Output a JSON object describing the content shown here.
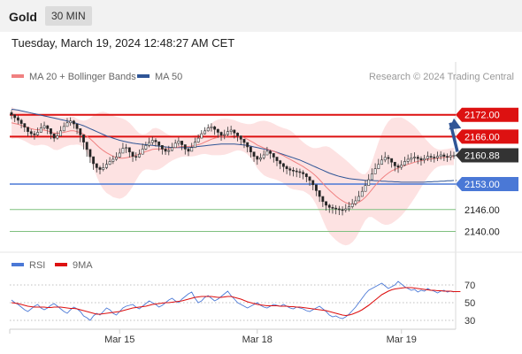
{
  "header": {
    "title": "Gold",
    "timeframe": "30 MIN",
    "timestamp": "Tuesday, March 19, 2024 12:48:27 AM CET"
  },
  "legend": {
    "ma20_label": "MA 20 + Bollinger Bands",
    "ma50_label": "MA 50",
    "ma20_color": "#f08080",
    "ma50_color": "#2f5596",
    "credit": "Research © 2024 Trading Central"
  },
  "rsi_legend": {
    "rsi_label": "RSI",
    "ma9_label": "9MA",
    "rsi_color": "#4a78d6",
    "ma9_color": "#dd1111"
  },
  "colors": {
    "up_candle": "#ffffff",
    "down_candle": "#222222",
    "resistance": "#dd1111",
    "support": "#4a78d6",
    "target": "#7fc07f",
    "current": "#333333",
    "arrow": "#2f5596",
    "band_fill": "#fde2e2"
  },
  "chart_data": [
    {
      "type": "candlestick",
      "title": "Gold",
      "timeframe": "30 MIN",
      "ylim": [
        2136,
        2178
      ],
      "x_tick_labels": [
        "Mar 15",
        "Mar 18",
        "Mar 19"
      ],
      "current_price": {
        "label": "2160.88",
        "value": 2160.88
      },
      "levels": [
        {
          "label": "2172.00",
          "value": 2172.0,
          "kind": "resistance"
        },
        {
          "label": "2166.00",
          "value": 2166.0,
          "kind": "resistance"
        },
        {
          "label": "2153.00",
          "value": 2153.0,
          "kind": "support"
        },
        {
          "label": "2146.00",
          "value": 2146.0,
          "kind": "target"
        },
        {
          "label": "2140.00",
          "value": 2140.0,
          "kind": "target"
        }
      ],
      "close": [
        2172.0,
        2171.2,
        2170.5,
        2169.6,
        2168.6,
        2167.4,
        2166.8,
        2166.5,
        2167.2,
        2168.4,
        2169.0,
        2168.2,
        2166.8,
        2165.6,
        2166.2,
        2167.6,
        2168.8,
        2169.8,
        2170.3,
        2169.5,
        2168.2,
        2166.5,
        2164.5,
        2162.5,
        2160.5,
        2158.6,
        2157.5,
        2157.0,
        2157.5,
        2158.4,
        2159.2,
        2159.8,
        2160.4,
        2161.5,
        2162.8,
        2163.0,
        2161.8,
        2160.6,
        2160.4,
        2161.2,
        2162.6,
        2163.6,
        2164.4,
        2165.0,
        2164.6,
        2163.6,
        2162.6,
        2162.0,
        2162.2,
        2163.0,
        2164.2,
        2164.8,
        2163.8,
        2162.6,
        2162.0,
        2163.0,
        2164.5,
        2165.6,
        2166.8,
        2167.6,
        2168.4,
        2168.7,
        2168.0,
        2167.2,
        2166.4,
        2166.6,
        2167.4,
        2167.8,
        2167.0,
        2166.2,
        2165.3,
        2164.4,
        2163.2,
        2161.8,
        2160.6,
        2159.8,
        2160.2,
        2161.0,
        2162.0,
        2161.4,
        2160.4,
        2159.4,
        2158.6,
        2157.8,
        2157.2,
        2156.8,
        2156.6,
        2156.4,
        2156.2,
        2155.8,
        2155.0,
        2154.0,
        2152.8,
        2151.2,
        2149.6,
        2148.2,
        2147.2,
        2146.6,
        2146.4,
        2146.2,
        2146.0,
        2145.9,
        2146.2,
        2146.8,
        2147.6,
        2148.4,
        2149.6,
        2151.0,
        2152.6,
        2154.2,
        2155.8,
        2157.2,
        2158.4,
        2159.6,
        2160.3,
        2160.0,
        2159.0,
        2158.0,
        2157.6,
        2158.2,
        2159.2,
        2159.8,
        2160.2,
        2160.4,
        2160.0,
        2159.6,
        2160.0,
        2160.6,
        2160.4,
        2160.2,
        2160.6,
        2161.0,
        2160.6,
        2160.4,
        2160.8,
        2160.9
      ],
      "high": [
        2173.3,
        2172.2,
        2171.8,
        2170.9,
        2169.7,
        2168.5,
        2168.1,
        2167.6,
        2168.5,
        2169.7,
        2170.1,
        2169.2,
        2167.8,
        2166.7,
        2167.5,
        2168.9,
        2169.9,
        2171.1,
        2171.3,
        2170.6,
        2169.2,
        2167.5,
        2166.0,
        2164.0,
        2162.0,
        2159.9,
        2158.5,
        2158.0,
        2158.8,
        2159.7,
        2160.4,
        2160.8,
        2161.7,
        2162.8,
        2164.3,
        2164.0,
        2162.8,
        2161.6,
        2161.7,
        2162.5,
        2164.1,
        2164.6,
        2165.7,
        2166.0,
        2165.6,
        2164.6,
        2163.6,
        2163.3,
        2163.5,
        2164.3,
        2165.2,
        2165.8,
        2164.8,
        2163.6,
        2163.0,
        2164.3,
        2165.7,
        2166.6,
        2167.8,
        2168.6,
        2169.4,
        2169.7,
        2169.0,
        2168.2,
        2167.4,
        2167.9,
        2168.7,
        2169.0,
        2168.0,
        2167.2,
        2166.3,
        2165.4,
        2164.2,
        2162.8,
        2161.6,
        2160.8,
        2161.4,
        2162.3,
        2163.2,
        2162.4,
        2161.4,
        2160.4,
        2159.6,
        2158.8,
        2158.2,
        2157.8,
        2157.6,
        2157.4,
        2157.2,
        2156.8,
        2156.0,
        2155.0,
        2153.8,
        2152.2,
        2150.6,
        2149.2,
        2148.2,
        2147.6,
        2147.4,
        2147.2,
        2147.0,
        2146.9,
        2147.5,
        2148.1,
        2148.9,
        2149.7,
        2151.1,
        2152.3,
        2154.1,
        2155.7,
        2157.3,
        2158.7,
        2159.9,
        2160.9,
        2161.8,
        2161.0,
        2160.0,
        2159.0,
        2158.6,
        2159.5,
        2160.5,
        2161.1,
        2161.5,
        2161.7,
        2161.0,
        2160.6,
        2161.0,
        2161.9,
        2161.4,
        2161.2,
        2161.9,
        2162.0,
        2161.6,
        2161.4,
        2162.1,
        2161.9
      ],
      "low": [
        2170.8,
        2170.0,
        2169.4,
        2168.3,
        2167.3,
        2166.1,
        2165.8,
        2165.2,
        2166.2,
        2167.1,
        2168.0,
        2166.7,
        2165.3,
        2164.6,
        2165.2,
        2166.3,
        2167.5,
        2168.8,
        2169.0,
        2168.2,
        2166.7,
        2164.5,
        2162.5,
        2160.5,
        2158.8,
        2156.9,
        2156.2,
        2155.7,
        2156.5,
        2157.1,
        2158.2,
        2158.5,
        2159.4,
        2160.2,
        2161.5,
        2161.5,
        2160.3,
        2159.1,
        2159.4,
        2160.2,
        2161.3,
        2162.3,
        2163.1,
        2163.7,
        2163.3,
        2162.1,
        2161.1,
        2161.0,
        2160.9,
        2162.0,
        2163.2,
        2163.5,
        2162.3,
        2161.1,
        2160.7,
        2162.0,
        2163.2,
        2164.3,
        2165.8,
        2166.6,
        2167.4,
        2167.4,
        2166.5,
        2165.7,
        2164.9,
        2165.3,
        2166.1,
        2166.5,
        2165.5,
        2164.7,
        2163.8,
        2162.9,
        2161.7,
        2160.3,
        2159.1,
        2158.3,
        2159.2,
        2159.7,
        2161.0,
        2159.9,
        2158.9,
        2157.9,
        2157.1,
        2156.3,
        2155.7,
        2155.3,
        2155.1,
        2154.9,
        2154.7,
        2154.3,
        2153.5,
        2152.5,
        2151.3,
        2149.7,
        2148.1,
        2146.7,
        2145.7,
        2145.1,
        2144.9,
        2144.7,
        2144.5,
        2144.4,
        2145.2,
        2145.5,
        2146.3,
        2147.1,
        2148.3,
        2149.7,
        2151.3,
        2152.9,
        2154.5,
        2155.9,
        2157.1,
        2158.3,
        2159.0,
        2158.5,
        2157.5,
        2156.5,
        2156.1,
        2156.9,
        2157.9,
        2158.5,
        2158.9,
        2159.1,
        2158.5,
        2158.1,
        2158.7,
        2159.3,
        2159.1,
        2158.9,
        2159.3,
        2159.7,
        2159.3,
        2159.1,
        2159.5,
        2159.9
      ],
      "series": [
        {
          "name": "MA 20 + Bollinger Bands",
          "values": [
            2169.8,
            2169.6,
            2169.4,
            2169.1,
            2168.8,
            2168.5,
            2168.2,
            2168.0,
            2167.9,
            2167.9,
            2167.8,
            2167.6,
            2167.3,
            2167.0,
            2166.9,
            2167.0,
            2167.2,
            2167.4,
            2167.6,
            2167.6,
            2167.4,
            2167.1,
            2166.7,
            2166.1,
            2165.4,
            2164.6,
            2163.7,
            2162.9,
            2162.2,
            2161.6,
            2161.1,
            2160.6,
            2160.3,
            2160.1,
            2160.1,
            2160.2,
            2160.4,
            2160.6,
            2160.9,
            2161.2,
            2161.6,
            2161.9,
            2162.2,
            2162.5,
            2162.6,
            2162.6,
            2162.6,
            2162.6,
            2162.7,
            2162.8,
            2163.0,
            2163.2,
            2163.3,
            2163.3,
            2163.3,
            2163.4,
            2163.6,
            2163.8,
            2164.1,
            2164.5,
            2164.9,
            2165.3,
            2165.6,
            2165.8,
            2165.9,
            2166.0,
            2166.1,
            2166.2,
            2166.3,
            2166.2,
            2166.0,
            2165.7,
            2165.3,
            2164.8,
            2164.3,
            2163.7,
            2163.3,
            2162.9,
            2162.6,
            2162.3,
            2162.0,
            2161.6,
            2161.2,
            2160.8,
            2160.3,
            2159.8,
            2159.3,
            2158.8,
            2158.3,
            2157.8,
            2157.2,
            2156.6,
            2155.9,
            2155.1,
            2154.2,
            2153.2,
            2152.2,
            2151.3,
            2150.5,
            2149.7,
            2149.0,
            2148.4,
            2147.9,
            2147.6,
            2147.5,
            2147.6,
            2148.0,
            2148.6,
            2149.4,
            2150.4,
            2151.5,
            2152.6,
            2153.6,
            2154.5,
            2155.3,
            2156.0,
            2156.6,
            2157.0,
            2157.4,
            2157.8,
            2158.1,
            2158.4,
            2158.7,
            2159.0,
            2159.2,
            2159.4,
            2159.6,
            2159.8,
            2159.9,
            2160.0,
            2160.1,
            2160.2,
            2160.3,
            2160.4,
            2160.5,
            2160.6
          ]
        },
        {
          "name": "MA 50",
          "values": [
            2173.5,
            2173.4,
            2173.3,
            2173.1,
            2172.9,
            2172.7,
            2172.5,
            2172.3,
            2172.1,
            2171.9,
            2171.7,
            2171.5,
            2171.3,
            2171.1,
            2170.9,
            2170.7,
            2170.5,
            2170.3,
            2170.1,
            2169.9,
            2169.6,
            2169.3,
            2169.0,
            2168.6,
            2168.2,
            2167.8,
            2167.4,
            2167.0,
            2166.6,
            2166.2,
            2165.9,
            2165.6,
            2165.3,
            2165.0,
            2164.8,
            2164.6,
            2164.4,
            2164.2,
            2164.1,
            2164.0,
            2163.9,
            2163.8,
            2163.7,
            2163.6,
            2163.5,
            2163.4,
            2163.3,
            2163.2,
            2163.1,
            2163.0,
            2163.0,
            2163.0,
            2163.0,
            2163.0,
            2163.0,
            2163.1,
            2163.2,
            2163.3,
            2163.4,
            2163.5,
            2163.6,
            2163.7,
            2163.8,
            2163.9,
            2164.0,
            2164.0,
            2164.0,
            2164.0,
            2164.0,
            2163.9,
            2163.8,
            2163.7,
            2163.6,
            2163.4,
            2163.2,
            2163.0,
            2162.8,
            2162.6,
            2162.4,
            2162.2,
            2162.0,
            2161.7,
            2161.4,
            2161.1,
            2160.8,
            2160.5,
            2160.2,
            2159.9,
            2159.6,
            2159.2,
            2158.8,
            2158.4,
            2158.0,
            2157.6,
            2157.2,
            2156.8,
            2156.4,
            2156.0,
            2155.7,
            2155.4,
            2155.1,
            2154.9,
            2154.7,
            2154.5,
            2154.4,
            2154.3,
            2154.2,
            2154.1,
            2154.0,
            2154.0,
            2154.0,
            2153.9,
            2153.9,
            2153.8,
            2153.8,
            2153.7,
            2153.7,
            2153.6,
            2153.6,
            2153.5,
            2153.5,
            2153.5,
            2153.5,
            2153.5,
            2153.5,
            2153.5,
            2153.5,
            2153.6,
            2153.6,
            2153.7,
            2153.7,
            2153.8,
            2153.8,
            2153.9,
            2153.9,
            2154.0
          ]
        }
      ]
    },
    {
      "type": "line",
      "title": "",
      "ylim": [
        22,
        80
      ],
      "y_ticks": [
        "70",
        "50",
        "30"
      ],
      "y_tick_values": [
        70,
        50,
        30
      ],
      "series": [
        {
          "name": "RSI",
          "values": [
            53,
            50,
            48,
            45,
            42,
            40,
            43,
            46,
            48,
            44,
            42,
            44,
            47,
            49,
            46,
            43,
            40,
            38,
            42,
            45,
            43,
            40,
            35,
            33,
            30,
            35,
            38,
            36,
            40,
            44,
            42,
            38,
            36,
            40,
            44,
            46,
            47,
            48,
            45,
            43,
            46,
            49,
            52,
            50,
            48,
            45,
            47,
            50,
            53,
            55,
            52,
            50,
            54,
            57,
            60,
            62,
            55,
            50,
            52,
            56,
            58,
            55,
            52,
            54,
            57,
            60,
            63,
            58,
            54,
            50,
            48,
            46,
            44,
            46,
            48,
            50,
            47,
            45,
            44,
            46,
            48,
            47,
            46,
            48,
            46,
            44,
            43,
            45,
            44,
            43,
            41,
            40,
            42,
            44,
            46,
            43,
            40,
            36,
            34,
            35,
            33,
            32,
            34,
            37,
            41,
            45,
            50,
            55,
            60,
            64,
            66,
            68,
            70,
            72,
            69,
            66,
            68,
            70,
            74,
            71,
            68,
            66,
            64,
            65,
            62,
            64,
            63,
            66,
            64,
            63,
            61,
            63,
            64,
            62,
            63,
            62
          ]
        },
        {
          "name": "9MA",
          "values": [
            50,
            49.5,
            49,
            48,
            47,
            46,
            45.5,
            45,
            45,
            45,
            45,
            44.5,
            44.5,
            45,
            45,
            45,
            44.5,
            44,
            43.5,
            43.5,
            43,
            42,
            41,
            40,
            39,
            38,
            37,
            37,
            37.5,
            38,
            38.5,
            39,
            39.5,
            40,
            41,
            42,
            43,
            44,
            44.5,
            45,
            45.5,
            46,
            47,
            48,
            48.5,
            49,
            49.5,
            50,
            50,
            50.5,
            51,
            51.5,
            52,
            53,
            54,
            55,
            56,
            56.5,
            57,
            57,
            57,
            57,
            56.5,
            56,
            56,
            56.5,
            57,
            57,
            56,
            55,
            54,
            52.5,
            51,
            50,
            49,
            48,
            47.5,
            47,
            46.5,
            46.5,
            46.5,
            46.5,
            46,
            46,
            46,
            45.5,
            45.5,
            45,
            45,
            44.5,
            44,
            43.5,
            43,
            42.5,
            42,
            41.5,
            41,
            40,
            39,
            38,
            37,
            36,
            35.5,
            36,
            37,
            38.5,
            40,
            42,
            44.5,
            47,
            50,
            53,
            56,
            59,
            61,
            63,
            64.5,
            65.5,
            66,
            66.5,
            67,
            67,
            67,
            66.5,
            66,
            65.5,
            65,
            64.5,
            64,
            64,
            63.5,
            63.5,
            63,
            63,
            63,
            62.5,
            62.5,
            62.5
          ]
        }
      ]
    }
  ]
}
